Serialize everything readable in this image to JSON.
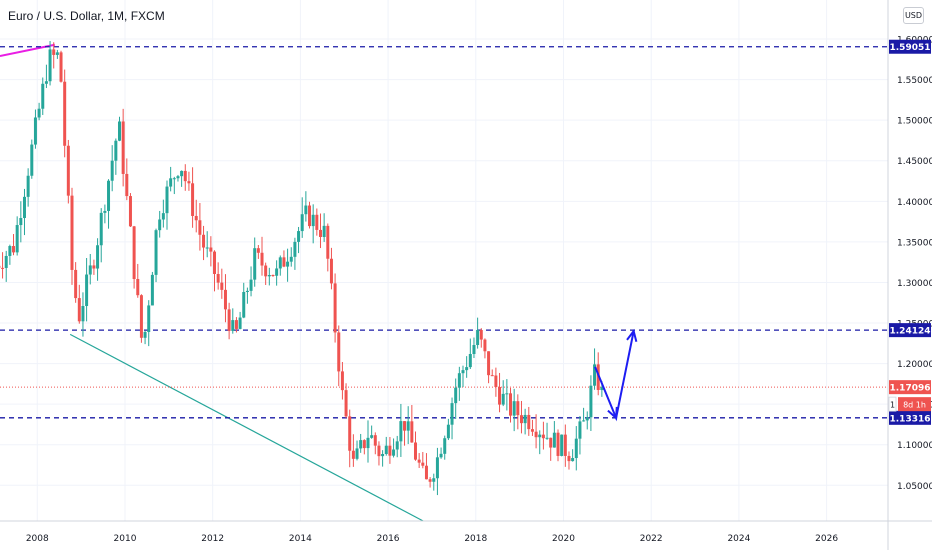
{
  "header": {
    "title": "Euro / U.S. Dollar, 1M, FXCM",
    "currency_button": "USD"
  },
  "chart_data": {
    "type": "candlestick",
    "title": "Euro / U.S. Dollar, 1M, FXCM",
    "xlabel": "",
    "ylabel": "",
    "x_ticks": [
      "2008",
      "2010",
      "2012",
      "2014",
      "2016",
      "2018",
      "2020",
      "2022",
      "2024",
      "2026"
    ],
    "y_ticks": [
      "1.60000",
      "1.55000",
      "1.50000",
      "1.45000",
      "1.40000",
      "1.35000",
      "1.30000",
      "1.25000",
      "1.20000",
      "1.15000",
      "1.10000",
      "1.05000"
    ],
    "xlim": [
      2007.15,
      2027.4
    ],
    "ylim": [
      1.006,
      1.621
    ],
    "grid": true,
    "colors": {
      "up": "#26a69a",
      "down": "#ef5350",
      "level": "#1a1aa6",
      "arrow": "#1d1df2",
      "trend_pink": "#e91ee4",
      "trend_teal": "#26a69a",
      "last_price": "#ef5350"
    },
    "anchors": [
      {
        "t": 2007.0,
        "p": 1.316
      },
      {
        "t": 2007.5,
        "p": 1.345
      },
      {
        "t": 2007.9,
        "p": 1.46
      },
      {
        "t": 2008.3,
        "p": 1.575
      },
      {
        "t": 2008.55,
        "p": 1.58
      },
      {
        "t": 2008.85,
        "p": 1.3
      },
      {
        "t": 2009.0,
        "p": 1.26
      },
      {
        "t": 2009.35,
        "p": 1.335
      },
      {
        "t": 2009.9,
        "p": 1.495
      },
      {
        "t": 2010.45,
        "p": 1.215
      },
      {
        "t": 2010.8,
        "p": 1.385
      },
      {
        "t": 2011.3,
        "p": 1.45
      },
      {
        "t": 2011.8,
        "p": 1.35
      },
      {
        "t": 2012.1,
        "p": 1.31
      },
      {
        "t": 2012.55,
        "p": 1.23
      },
      {
        "t": 2013.0,
        "p": 1.33
      },
      {
        "t": 2013.5,
        "p": 1.31
      },
      {
        "t": 2014.2,
        "p": 1.385
      },
      {
        "t": 2014.6,
        "p": 1.36
      },
      {
        "t": 2015.0,
        "p": 1.16
      },
      {
        "t": 2015.25,
        "p": 1.075
      },
      {
        "t": 2015.6,
        "p": 1.115
      },
      {
        "t": 2015.9,
        "p": 1.085
      },
      {
        "t": 2016.4,
        "p": 1.13
      },
      {
        "t": 2016.9,
        "p": 1.05
      },
      {
        "t": 2017.15,
        "p": 1.08
      },
      {
        "t": 2017.6,
        "p": 1.175
      },
      {
        "t": 2018.1,
        "p": 1.235
      },
      {
        "t": 2018.4,
        "p": 1.18
      },
      {
        "t": 2018.8,
        "p": 1.145
      },
      {
        "t": 2019.3,
        "p": 1.13
      },
      {
        "t": 2019.8,
        "p": 1.105
      },
      {
        "t": 2020.2,
        "p": 1.09
      },
      {
        "t": 2020.5,
        "p": 1.125
      },
      {
        "t": 2020.75,
        "p": 1.185
      },
      {
        "t": 2020.9,
        "p": 1.171
      }
    ],
    "levels": [
      {
        "name": "1.59051",
        "value": 1.59051
      },
      {
        "name": "1.24124",
        "value": 1.24124
      },
      {
        "name": "1.13316",
        "value": 1.13316
      }
    ],
    "last_price": {
      "value": 1.17096,
      "label": "1.17096",
      "countdown": "8d 1h",
      "marker": "1"
    },
    "trend_lines": [
      {
        "name": "pink-trend-line",
        "color": "#e91ee4",
        "points": [
          [
            2007.15,
            1.579
          ],
          [
            2008.4,
            1.593
          ]
        ]
      },
      {
        "name": "teal-trend-line",
        "color": "#26a69a",
        "points": [
          [
            2008.75,
            1.236
          ],
          [
            2016.8,
            1.006
          ]
        ]
      }
    ],
    "projection": [
      [
        2020.72,
        1.196
      ],
      [
        2021.2,
        1.133
      ],
      [
        2021.6,
        1.24
      ]
    ]
  }
}
